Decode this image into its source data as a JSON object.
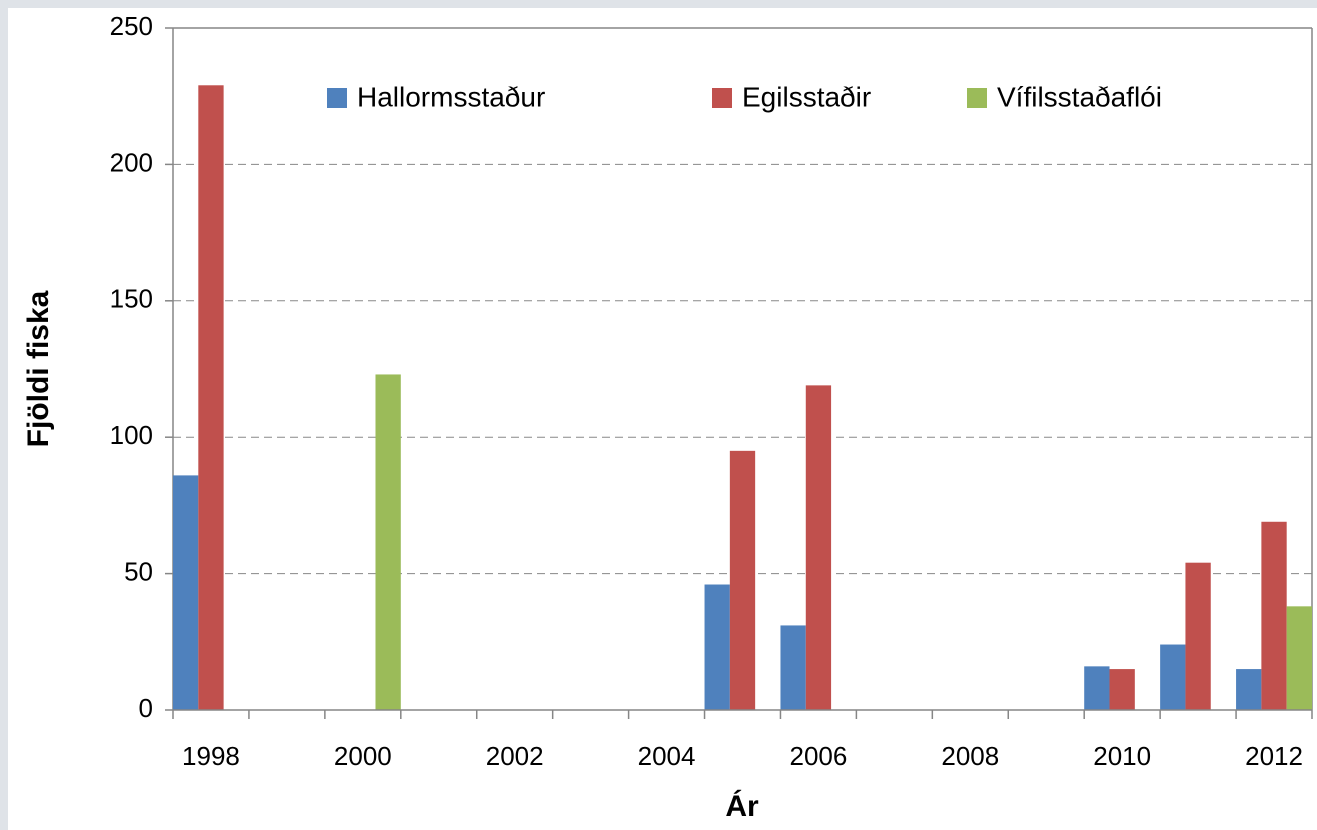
{
  "chart_data": {
    "type": "bar",
    "x_label": "Ár",
    "y_label": "Fjöldi fiska",
    "categories": [
      "1998",
      null,
      "2000",
      null,
      "2002",
      null,
      "2004",
      null,
      "2006",
      null,
      "2008",
      null,
      "2010",
      null,
      "2012"
    ],
    "series": [
      {
        "name": "Hallormsstaður",
        "color": "#4f81bd",
        "values": [
          86,
          null,
          null,
          null,
          null,
          null,
          null,
          46,
          31,
          null,
          null,
          null,
          16,
          24,
          15
        ]
      },
      {
        "name": "Egilsstaðir",
        "color": "#c0504d",
        "values": [
          229,
          null,
          null,
          null,
          null,
          null,
          null,
          95,
          119,
          null,
          null,
          null,
          15,
          54,
          69
        ]
      },
      {
        "name": "Vífilsstaðaflói",
        "color": "#9bbb59",
        "values": [
          null,
          null,
          123,
          null,
          null,
          null,
          null,
          null,
          null,
          null,
          null,
          null,
          null,
          null,
          38
        ]
      }
    ],
    "ylim": [
      0,
      250
    ],
    "yticks": [
      0,
      50,
      100,
      150,
      200,
      250
    ],
    "grid": true,
    "legend": "top"
  }
}
